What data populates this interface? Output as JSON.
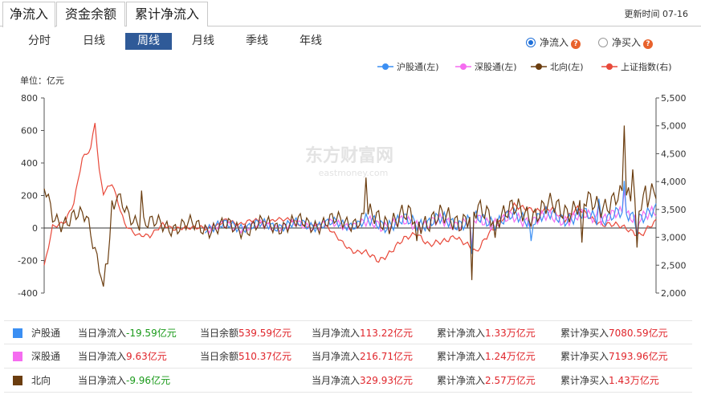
{
  "tabs": [
    "净流入",
    "资金余额",
    "累计净流入"
  ],
  "update_label": "更新时间 07-16",
  "periods": [
    "分时",
    "日线",
    "周线",
    "月线",
    "季线",
    "年线"
  ],
  "active_period_index": 2,
  "radios": [
    {
      "label": "净流入",
      "checked": true
    },
    {
      "label": "净买入",
      "checked": false
    }
  ],
  "help_glyph": "?",
  "chart_data": {
    "type": "line",
    "unit_label": "单位：亿元",
    "legend": [
      {
        "name": "沪股通(左)",
        "color": "#3b8ff3"
      },
      {
        "name": "深股通(左)",
        "color": "#f56cf0"
      },
      {
        "name": "北向(左)",
        "color": "#6b3d0f"
      },
      {
        "name": "上证指数(右)",
        "color": "#e8493a"
      }
    ],
    "y_left": {
      "range": [
        -400,
        800
      ],
      "ticks": [
        "800",
        "600",
        "400",
        "200",
        "0",
        "-200",
        "-400"
      ]
    },
    "y_right": {
      "range": [
        2000,
        5500
      ],
      "ticks": [
        "5,500",
        "5,000",
        "4,500",
        "4,000",
        "3,500",
        "3,000",
        "2,500",
        "2,000"
      ]
    },
    "watermark": {
      "cn": "东方财富网",
      "en": "eastmoney.com"
    },
    "weeks": 290,
    "series": [
      {
        "name": "北向(左)",
        "axis": "left",
        "color": "#6b3d0f",
        "knots": [
          [
            0,
            240
          ],
          [
            4,
            60
          ],
          [
            8,
            40
          ],
          [
            14,
            80
          ],
          [
            20,
            50
          ],
          [
            28,
            -300
          ],
          [
            34,
            180
          ],
          [
            40,
            80
          ],
          [
            50,
            20
          ],
          [
            70,
            10
          ],
          [
            90,
            0
          ],
          [
            110,
            20
          ],
          [
            130,
            30
          ],
          [
            150,
            50
          ],
          [
            170,
            60
          ],
          [
            190,
            50
          ],
          [
            210,
            90
          ],
          [
            230,
            100
          ],
          [
            240,
            120
          ],
          [
            250,
            130
          ],
          [
            260,
            150
          ],
          [
            270,
            170
          ],
          [
            280,
            180
          ],
          [
            289,
            200
          ]
        ],
        "spikes": [
          [
            28,
            -360
          ],
          [
            30,
            -220
          ],
          [
            32,
            170
          ],
          [
            46,
            230
          ],
          [
            152,
            310
          ],
          [
            176,
            -80
          ],
          [
            202,
            -320
          ],
          [
            213,
            -60
          ],
          [
            254,
            -90
          ],
          [
            274,
            630
          ],
          [
            278,
            360
          ],
          [
            280,
            -120
          ],
          [
            284,
            260
          ]
        ]
      },
      {
        "name": "沪股通(左)",
        "axis": "left",
        "color": "#3b8ff3",
        "start": 76,
        "knots": [
          [
            76,
            10
          ],
          [
            100,
            15
          ],
          [
            120,
            20
          ],
          [
            140,
            25
          ],
          [
            160,
            30
          ],
          [
            180,
            40
          ],
          [
            200,
            40
          ],
          [
            220,
            60
          ],
          [
            240,
            70
          ],
          [
            260,
            70
          ],
          [
            280,
            80
          ],
          [
            289,
            90
          ]
        ],
        "spikes": [
          [
            202,
            -160
          ],
          [
            230,
            -80
          ],
          [
            262,
            180
          ],
          [
            274,
            290
          ],
          [
            280,
            -50
          ]
        ]
      },
      {
        "name": "深股通(左)",
        "axis": "left",
        "color": "#f56cf0",
        "start": 76,
        "knots": [
          [
            76,
            5
          ],
          [
            100,
            10
          ],
          [
            120,
            15
          ],
          [
            140,
            20
          ],
          [
            160,
            25
          ],
          [
            180,
            30
          ],
          [
            200,
            35
          ],
          [
            220,
            50
          ],
          [
            240,
            60
          ],
          [
            260,
            70
          ],
          [
            280,
            80
          ],
          [
            289,
            80
          ]
        ],
        "spikes": [
          [
            202,
            -120
          ],
          [
            262,
            150
          ],
          [
            274,
            240
          ],
          [
            280,
            -30
          ]
        ]
      },
      {
        "name": "上证指数(右)",
        "axis": "right",
        "color": "#e8493a",
        "knots": [
          [
            0,
            2450
          ],
          [
            4,
            3200
          ],
          [
            10,
            3300
          ],
          [
            14,
            3600
          ],
          [
            18,
            4400
          ],
          [
            22,
            4600
          ],
          [
            24,
            5100
          ],
          [
            26,
            4200
          ],
          [
            28,
            3800
          ],
          [
            32,
            3950
          ],
          [
            38,
            3250
          ],
          [
            44,
            3050
          ],
          [
            50,
            3000
          ],
          [
            56,
            3250
          ],
          [
            62,
            3150
          ],
          [
            68,
            3150
          ],
          [
            74,
            3200
          ],
          [
            80,
            3150
          ],
          [
            86,
            3300
          ],
          [
            92,
            3250
          ],
          [
            98,
            3300
          ],
          [
            104,
            3250
          ],
          [
            110,
            3350
          ],
          [
            116,
            3300
          ],
          [
            122,
            3200
          ],
          [
            128,
            3250
          ],
          [
            134,
            3150
          ],
          [
            140,
            2950
          ],
          [
            146,
            2750
          ],
          [
            152,
            2700
          ],
          [
            158,
            2600
          ],
          [
            164,
            2750
          ],
          [
            170,
            2950
          ],
          [
            176,
            3100
          ],
          [
            182,
            2850
          ],
          [
            188,
            2900
          ],
          [
            194,
            3050
          ],
          [
            200,
            2850
          ],
          [
            204,
            2700
          ],
          [
            210,
            3100
          ],
          [
            216,
            3300
          ],
          [
            222,
            3550
          ],
          [
            228,
            3550
          ],
          [
            234,
            3450
          ],
          [
            240,
            3500
          ],
          [
            246,
            3350
          ],
          [
            252,
            3500
          ],
          [
            258,
            3350
          ],
          [
            264,
            3250
          ],
          [
            270,
            3200
          ],
          [
            276,
            3150
          ],
          [
            282,
            3050
          ],
          [
            289,
            3260
          ]
        ]
      }
    ]
  },
  "table": [
    {
      "name": "沪股通",
      "color": "#3b8ff3",
      "cells": [
        [
          "当日净流入",
          "-19.59亿元",
          "neg"
        ],
        [
          "当日余额",
          "539.59亿元",
          "pos"
        ],
        [
          "当月净流入",
          "113.22亿元",
          "pos"
        ],
        [
          "累计净流入",
          "1.33万亿元",
          "pos"
        ],
        [
          "累计净买入",
          "7080.59亿元",
          "pos"
        ]
      ]
    },
    {
      "name": "深股通",
      "color": "#f56cf0",
      "cells": [
        [
          "当日净流入",
          "9.63亿元",
          "pos"
        ],
        [
          "当日余额",
          "510.37亿元",
          "pos"
        ],
        [
          "当月净流入",
          "216.71亿元",
          "pos"
        ],
        [
          "累计净流入",
          "1.24万亿元",
          "pos"
        ],
        [
          "累计净买入",
          "7193.96亿元",
          "pos"
        ]
      ]
    },
    {
      "name": "北向",
      "color": "#6b3d0f",
      "cells": [
        [
          "当日净流入",
          "-9.96亿元",
          "neg"
        ],
        [
          "",
          "",
          ""
        ],
        [
          "当月净流入",
          "329.93亿元",
          "pos"
        ],
        [
          "累计净流入",
          "2.57万亿元",
          "pos"
        ],
        [
          "累计净买入",
          "1.43万亿元",
          "pos"
        ]
      ]
    }
  ]
}
